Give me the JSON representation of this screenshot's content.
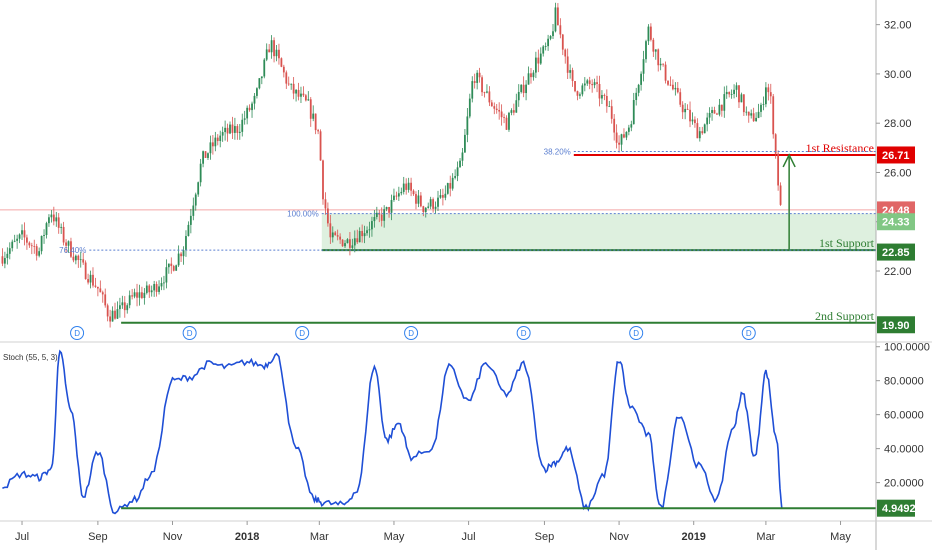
{
  "chart_data": [
    {
      "type": "line",
      "panel": "price",
      "x_axis": {
        "tick_labels": [
          "Jul",
          "Sep",
          "Nov",
          "2018",
          "Mar",
          "May",
          "Jul",
          "Sep",
          "Nov",
          "2019",
          "Mar",
          "May"
        ],
        "tick_dates": [
          "2017-07-01",
          "2017-09-01",
          "2017-11-01",
          "2018-01-01",
          "2018-03-01",
          "2018-05-01",
          "2018-07-01",
          "2018-09-01",
          "2018-11-01",
          "2019-01-01",
          "2019-03-01",
          "2019-05-01"
        ],
        "range": [
          "2017-06-13",
          "2019-05-30"
        ]
      },
      "y_axis": {
        "ticks": [
          "22.00",
          "24.00",
          "26.00",
          "28.00",
          "30.00",
          "32.00"
        ],
        "range": [
          19.2,
          33.0
        ],
        "position": "right"
      },
      "grid": false,
      "price": {
        "dates": [
          "2017-06-15",
          "2017-07-01",
          "2017-07-15",
          "2017-07-24",
          "2017-08-05",
          "2017-08-20",
          "2017-09-01",
          "2017-09-10",
          "2017-09-20",
          "2017-10-01",
          "2017-10-15",
          "2017-11-01",
          "2017-11-10",
          "2017-11-25",
          "2017-12-10",
          "2017-12-25",
          "2018-01-08",
          "2018-01-20",
          "2018-02-05",
          "2018-02-20",
          "2018-03-01",
          "2018-03-03",
          "2018-03-10",
          "2018-03-25",
          "2018-04-10",
          "2018-04-25",
          "2018-05-10",
          "2018-05-25",
          "2018-06-10",
          "2018-06-25",
          "2018-07-05",
          "2018-07-20",
          "2018-08-01",
          "2018-08-15",
          "2018-08-25",
          "2018-09-05",
          "2018-09-10",
          "2018-09-25",
          "2018-10-10",
          "2018-10-25",
          "2018-11-01",
          "2018-11-10",
          "2018-11-25",
          "2018-12-05",
          "2018-12-20",
          "2019-01-05",
          "2019-01-20",
          "2019-02-05",
          "2019-02-15",
          "2019-02-25",
          "2019-03-01",
          "2019-03-05",
          "2019-03-10",
          "2019-03-13"
        ],
        "values": [
          22.6,
          23.4,
          22.8,
          24.5,
          23.2,
          22.1,
          21.3,
          20.2,
          20.4,
          21.0,
          21.2,
          22.2,
          23.0,
          26.5,
          27.5,
          27.8,
          29.0,
          31.3,
          29.4,
          28.7,
          27.5,
          25.5,
          23.3,
          23.2,
          23.8,
          24.4,
          25.5,
          24.6,
          24.9,
          26.3,
          30.0,
          28.8,
          28.0,
          29.5,
          30.5,
          31.2,
          32.4,
          29.3,
          29.6,
          28.5,
          27.1,
          28.0,
          31.8,
          30.3,
          28.9,
          27.6,
          28.6,
          29.4,
          28.1,
          28.5,
          29.6,
          28.9,
          26.2,
          24.48
        ]
      },
      "lines": [
        {
          "label": "1st Resistance",
          "value": "26.71",
          "level": 26.71,
          "from": "2018-09-25",
          "color": "#e00000"
        },
        {
          "label": "1st Support",
          "value": "22.85",
          "level": 22.85,
          "from": "2018-03-03",
          "color": "#2e7d32"
        },
        {
          "label": "2nd Support",
          "value": "19.90",
          "level": 19.9,
          "from": "2017-09-20",
          "color": "#2e7d32"
        }
      ],
      "fib_levels": [
        {
          "label": "38.20%",
          "level": 26.85,
          "from": "2018-09-25"
        },
        {
          "label": "100.00%",
          "level": 24.33,
          "from": "2018-03-03"
        },
        {
          "label": "76.40%",
          "level": 22.85,
          "from": "2017-08-25"
        }
      ],
      "price_tags": [
        {
          "value": "24.48",
          "level": 24.48,
          "color": "#e06666"
        },
        {
          "value": "24.33",
          "level": 24.0,
          "color": "#81c784"
        }
      ],
      "support_zone": {
        "from": "2018-03-03",
        "top": 24.33,
        "bottom": 22.85,
        "color": "#c8e6c9"
      },
      "current_price_line": {
        "level": 24.48,
        "color": "#f4a7a7"
      },
      "target_arrow": {
        "date": "2019-03-20",
        "from": 22.85,
        "to": 26.71,
        "color": "#2e7d32"
      },
      "dividend_markers": {
        "symbol": "D",
        "dates": [
          "2017-08-15",
          "2017-11-15",
          "2018-02-15",
          "2018-05-15",
          "2018-08-15",
          "2018-11-15",
          "2019-02-15"
        ]
      }
    },
    {
      "type": "line",
      "panel": "oscillator",
      "title": "Stoch (55, 5, 3)",
      "y_axis": {
        "ticks": [
          "20.0000",
          "40.0000",
          "60.0000",
          "80.0000",
          "100.0000"
        ],
        "range": [
          -2,
          101
        ],
        "position": "right"
      },
      "series": [
        {
          "color": "#1f4fd6",
          "dates": [
            "2017-06-15",
            "2017-07-01",
            "2017-07-15",
            "2017-07-25",
            "2017-08-01",
            "2017-08-10",
            "2017-08-20",
            "2017-09-01",
            "2017-09-15",
            "2017-10-01",
            "2017-10-15",
            "2017-11-01",
            "2017-11-15",
            "2017-12-01",
            "2017-12-15",
            "2018-01-01",
            "2018-01-15",
            "2018-01-25",
            "2018-02-10",
            "2018-02-25",
            "2018-03-05",
            "2018-03-20",
            "2018-04-01",
            "2018-04-15",
            "2018-04-25",
            "2018-05-05",
            "2018-05-15",
            "2018-06-01",
            "2018-06-15",
            "2018-07-01",
            "2018-07-15",
            "2018-08-01",
            "2018-08-15",
            "2018-09-01",
            "2018-09-10",
            "2018-09-20",
            "2018-10-05",
            "2018-10-20",
            "2018-11-01",
            "2018-11-10",
            "2018-11-25",
            "2018-12-05",
            "2018-12-20",
            "2019-01-05",
            "2019-01-20",
            "2019-02-01",
            "2019-02-10",
            "2019-02-20",
            "2019-03-01",
            "2019-03-10",
            "2019-03-14"
          ],
          "values": [
            18,
            25,
            23,
            28,
            96,
            62,
            12,
            38,
            3,
            10,
            25,
            80,
            82,
            90,
            88,
            91,
            89,
            95,
            40,
            10,
            8,
            7,
            15,
            88,
            45,
            55,
            35,
            40,
            88,
            68,
            90,
            72,
            90,
            28,
            32,
            40,
            5,
            25,
            92,
            65,
            48,
            5,
            60,
            30,
            10,
            50,
            72,
            35,
            85,
            45,
            4.9492
          ]
        }
      ],
      "levels": [
        {
          "value": "4.9492",
          "level": 4.9492,
          "color": "#2e7d32"
        }
      ]
    }
  ]
}
